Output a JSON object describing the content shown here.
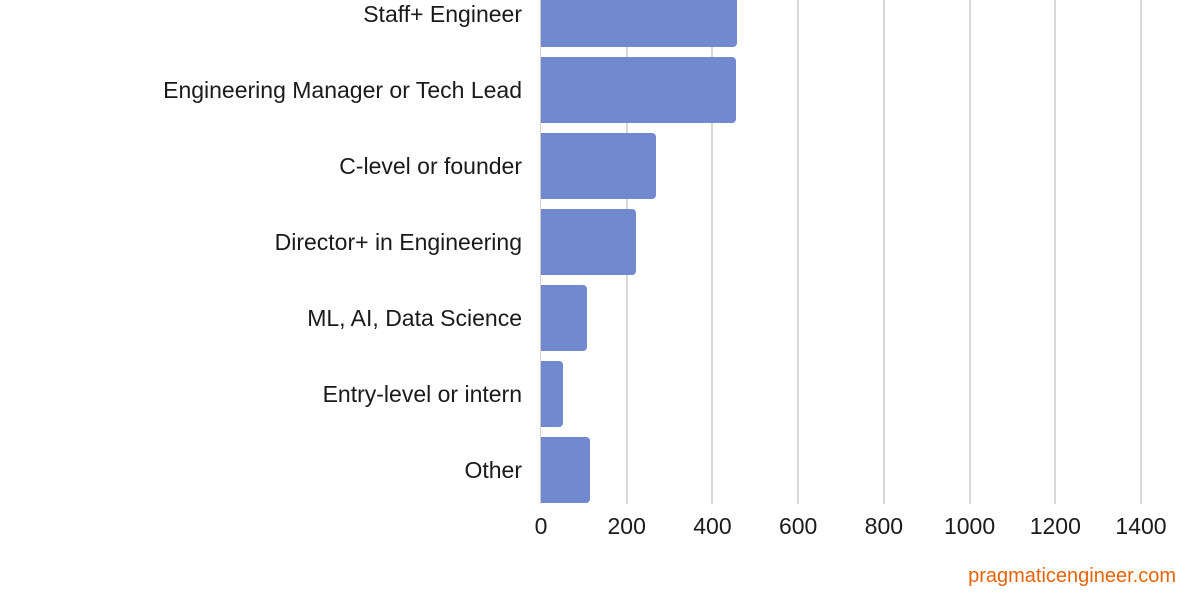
{
  "chart_data": {
    "type": "bar",
    "orientation": "horizontal",
    "title": "",
    "xlabel": "",
    "ylabel": "",
    "categories": [
      "Staff+ Engineer",
      "Engineering Manager or Tech Lead",
      "C-level or founder",
      "Director+ in Engineering",
      "ML, AI, Data Science",
      "Entry-level or intern",
      "Other"
    ],
    "values": [
      457,
      455,
      268,
      221,
      107,
      51,
      114
    ],
    "xlim": [
      0,
      1400
    ],
    "xticks": [
      "0",
      "200",
      "400",
      "600",
      "800",
      "1000",
      "1200",
      "1400"
    ],
    "grid": true,
    "bar_color": "#7289d0",
    "note": "Chart is cropped at top; additional categories above 'Staff+ Engineer' are not visible."
  },
  "watermark": "pragmaticengineer.com",
  "colors": {
    "bar": "#7289d0",
    "watermark": "#e8630a",
    "grid": "#d9d9d9"
  }
}
